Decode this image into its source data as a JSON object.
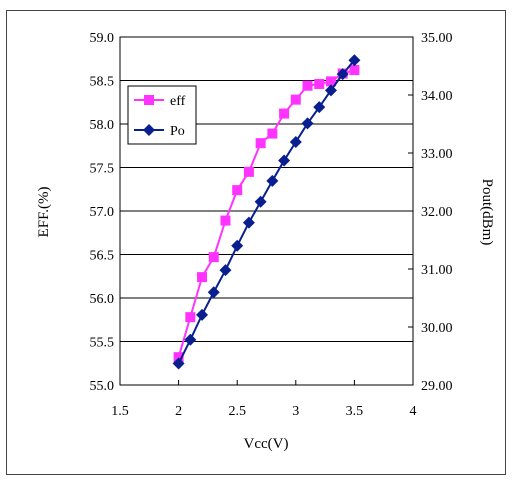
{
  "chart_data": {
    "type": "line",
    "title": "",
    "xlabel": "Vcc(V)",
    "ylabel": "EFF.(%)",
    "y2label": "Pout(dBm)",
    "xlim": [
      1.5,
      4
    ],
    "ylim": [
      55.0,
      59.0
    ],
    "y2lim": [
      29.0,
      35.0
    ],
    "x_ticks": [
      "1.5",
      "2",
      "2.5",
      "3",
      "3.5",
      "4"
    ],
    "y_ticks": [
      "55.0",
      "55.5",
      "56.0",
      "56.5",
      "57.0",
      "57.5",
      "58.0",
      "58.5",
      "59.0"
    ],
    "y2_ticks": [
      "29.00",
      "30.00",
      "31.00",
      "32.00",
      "33.00",
      "34.00",
      "35.00"
    ],
    "grid": "horizontal",
    "legend_position": "top-left",
    "series": [
      {
        "name": "eff",
        "axis": "left",
        "color": "#ff33ff",
        "marker": "square",
        "x": [
          2.0,
          2.1,
          2.2,
          2.3,
          2.4,
          2.5,
          2.6,
          2.7,
          2.8,
          2.9,
          3.0,
          3.1,
          3.2,
          3.3,
          3.4,
          3.5
        ],
        "values": [
          55.32,
          55.78,
          56.24,
          56.47,
          56.89,
          57.24,
          57.45,
          57.78,
          57.89,
          58.12,
          58.28,
          58.44,
          58.46,
          58.49,
          58.58,
          58.62
        ]
      },
      {
        "name": "Po",
        "axis": "right",
        "color": "#0a1f8f",
        "marker": "diamond",
        "x": [
          2.0,
          2.1,
          2.2,
          2.3,
          2.4,
          2.5,
          2.6,
          2.7,
          2.8,
          2.9,
          3.0,
          3.1,
          3.2,
          3.3,
          3.4,
          3.5
        ],
        "values": [
          29.37,
          29.78,
          30.21,
          30.6,
          30.98,
          31.4,
          31.8,
          32.16,
          32.52,
          32.87,
          33.19,
          33.51,
          33.79,
          34.08,
          34.36,
          34.6
        ]
      }
    ]
  }
}
